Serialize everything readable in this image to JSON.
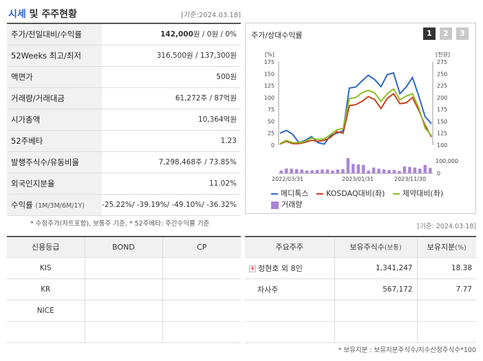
{
  "header": {
    "title_accent": "시세",
    "title_rest": " 및 주주현황",
    "date": "[기준:2024.03.18]"
  },
  "price_table": [
    {
      "label": "주가/전일대비/수익률",
      "label_small": "",
      "value_bold": "142,000",
      "value": "원 / 0원 / 0%"
    },
    {
      "label": "52Weeks 최고/최저",
      "label_small": "",
      "value_bold": "",
      "value": "316,500원 / 137,300원"
    },
    {
      "label": "액면가",
      "label_small": "",
      "value_bold": "",
      "value": "500원"
    },
    {
      "label": "거래량/거래대금",
      "label_small": "",
      "value_bold": "",
      "value": "61,272주 / 87억원"
    },
    {
      "label": "시가총액",
      "label_small": "",
      "value_bold": "",
      "value": "10,364억원"
    },
    {
      "label": "52주베타",
      "label_small": "",
      "value_bold": "",
      "value": "1.23"
    },
    {
      "label": "발행주식수/유동비율",
      "label_small": "",
      "value_bold": "",
      "value": "7,298,468주 / 73.85%"
    },
    {
      "label": "외국인지분율",
      "label_small": "",
      "value_bold": "",
      "value": "11.02%"
    }
  ],
  "returns_row": {
    "label": "수익률",
    "label_small": "(1M/3M/6M/1Y)",
    "value": "-25.22%/ -39.19%/ -49.10%/ -36.32%",
    "color": "#2e66c8"
  },
  "price_note": "* 수정주가(차트포함), 보통주 기준, * 52주베타: 주간수익률 기준",
  "chart_panel": {
    "title": "주가/상대수익률",
    "tabs": [
      "1",
      "2",
      "3"
    ],
    "active_tab": "1"
  },
  "chart_data": {
    "type": "line",
    "left_axis_label": "[%]",
    "right_axis_label": "[천원]",
    "left_ticks": [
      "175",
      "150",
      "125",
      "100",
      "75",
      "50",
      "25",
      "0"
    ],
    "right_ticks": [
      "275",
      "250",
      "225",
      "200",
      "175",
      "150",
      "125",
      "100"
    ],
    "volume_ticks": [
      "100,000",
      "0"
    ],
    "x_labels": [
      "2022/03/31",
      "2023/01/31",
      "2023/11/30"
    ],
    "ylim_left": [
      0,
      175
    ],
    "series": [
      {
        "name": "메디톡스",
        "color": "#2e66c8",
        "values": [
          25,
          31,
          23,
          5,
          10,
          18,
          5,
          2,
          20,
          25,
          30,
          120,
          122,
          135,
          147,
          138,
          123,
          148,
          152,
          108,
          122,
          142,
          103,
          60,
          45
        ]
      },
      {
        "name": "KOSDAQ대비(좌)",
        "color": "#c7401c",
        "values": [
          2,
          8,
          3,
          3,
          6,
          10,
          8,
          10,
          16,
          28,
          25,
          83,
          85,
          92,
          102,
          96,
          77,
          98,
          108,
          87,
          89,
          100,
          73,
          42,
          17
        ]
      },
      {
        "name": "제약대비(좌)",
        "color": "#8dbd24",
        "values": [
          3,
          10,
          5,
          5,
          8,
          15,
          12,
          13,
          22,
          32,
          35,
          98,
          100,
          110,
          115,
          110,
          92,
          108,
          118,
          95,
          103,
          108,
          78,
          36,
          20
        ]
      }
    ],
    "volume": {
      "name": "거래량",
      "color": "#a886d6",
      "values": [
        0.18,
        0.32,
        0.3,
        0.28,
        0.25,
        0.18,
        0.2,
        0.22,
        0.25,
        0.25,
        0.18,
        0.25,
        0.28,
        1.0,
        0.62,
        0.58,
        0.55,
        0.18,
        0.38,
        0.3,
        0.25,
        0.22,
        0.22,
        0.15,
        0.45,
        0.42,
        0.38,
        0.3,
        0.55,
        0.35
      ]
    }
  },
  "chart_date": "[기준: 2024.03.18]",
  "credit_table": {
    "headers": [
      "신용등급",
      "BOND",
      "CP"
    ],
    "rows": [
      [
        "KIS",
        "",
        ""
      ],
      [
        "KR",
        "",
        ""
      ],
      [
        "NICE",
        "",
        ""
      ],
      [
        "",
        "",
        ""
      ]
    ]
  },
  "shareholder_table": {
    "headers": [
      "주요주주",
      "보유주식수",
      "(보통)",
      "보유지분",
      "(%)"
    ],
    "rows": [
      {
        "name": "정현호 외 8인",
        "expand": "+",
        "shares": "1,341,247",
        "pct": "18.38"
      },
      {
        "name": "자사주",
        "expand": "",
        "shares": "567,172",
        "pct": "7.77"
      },
      {
        "name": "",
        "expand": "",
        "shares": "",
        "pct": ""
      },
      {
        "name": "",
        "expand": "",
        "shares": "",
        "pct": ""
      }
    ],
    "note": "* 보유지분 : 보유지분주식수/지수산정주식수*100"
  }
}
